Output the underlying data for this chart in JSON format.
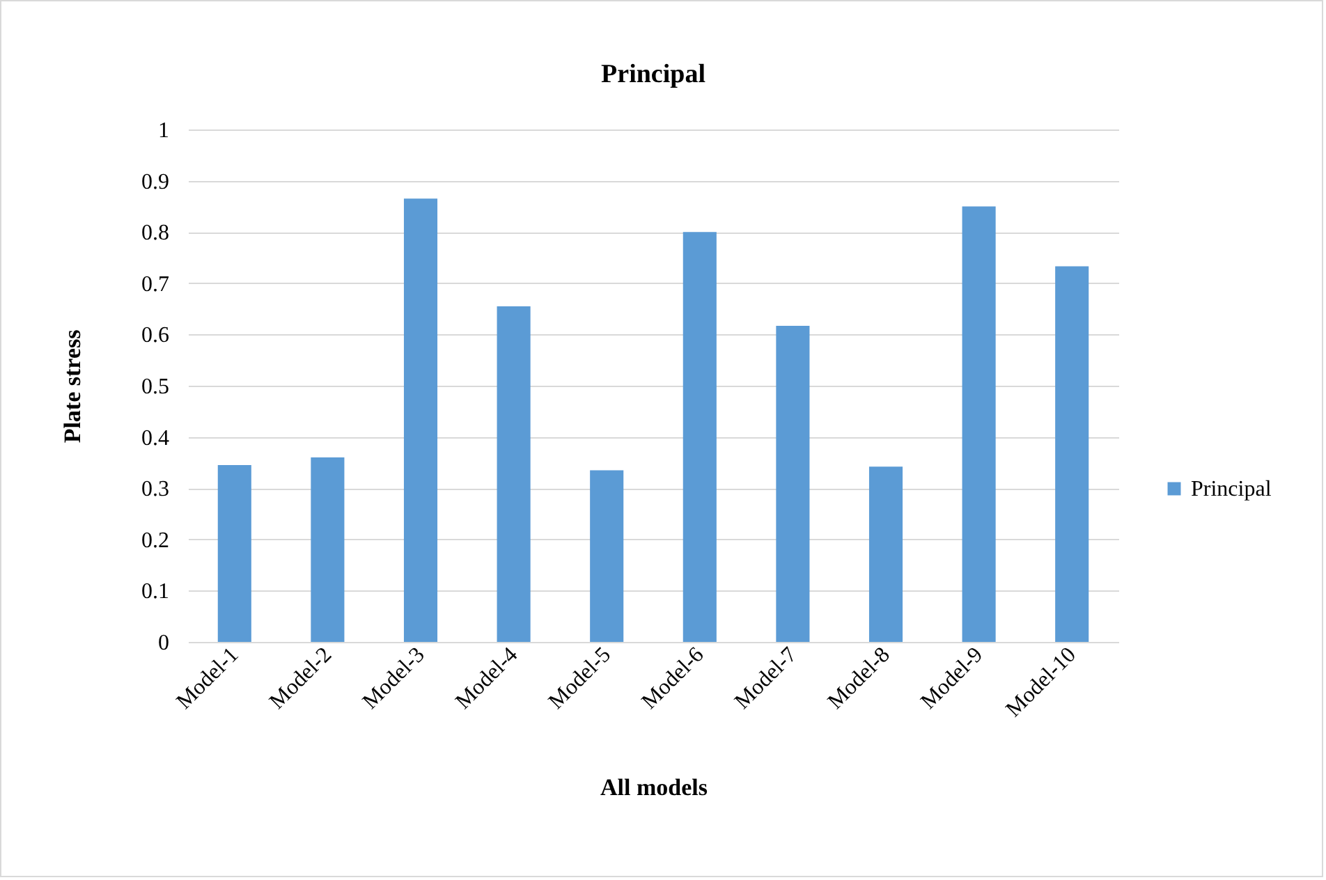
{
  "chart_data": {
    "type": "bar",
    "title": "Principal",
    "xlabel": "All models",
    "ylabel": "Plate stress",
    "categories": [
      "Model-1",
      "Model-2",
      "Model-3",
      "Model-4",
      "Model-5",
      "Model-6",
      "Model-7",
      "Model-8",
      "Model-9",
      "Model-10"
    ],
    "series": [
      {
        "name": "Principal",
        "color": "#5b9bd5",
        "values": [
          0.345,
          0.36,
          0.865,
          0.655,
          0.335,
          0.8,
          0.617,
          0.342,
          0.85,
          0.733
        ]
      }
    ],
    "ylim": [
      0,
      1
    ],
    "yticks": [
      0,
      0.1,
      0.2,
      0.3,
      0.4,
      0.5,
      0.6,
      0.7,
      0.8,
      0.9,
      1
    ],
    "grid": "y",
    "legend": "right"
  }
}
